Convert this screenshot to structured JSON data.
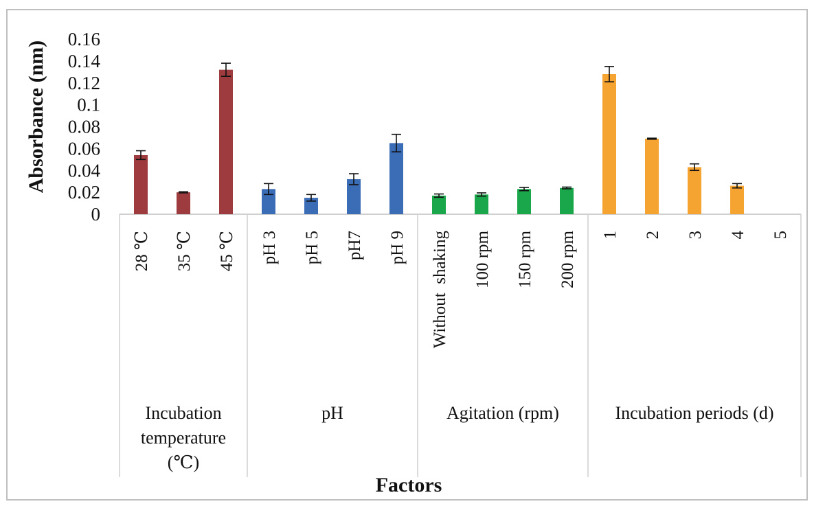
{
  "chart_data": {
    "type": "bar",
    "title": "",
    "xlabel": "Factors",
    "ylabel": "Absorbance (nm)",
    "ylim": [
      0,
      0.16
    ],
    "yticks": [
      "0",
      "0.02",
      "0.04",
      "0.06",
      "0.08",
      "0.1",
      "0.12",
      "0.14",
      "0.16"
    ],
    "grid": false,
    "legend": "none",
    "groups": [
      {
        "name": "Incubation temperature (℃)",
        "name_lines": [
          "Incubation",
          "temperature",
          "(℃)"
        ],
        "color": "#9e3b3f",
        "categories": [
          "28 ℃",
          "35 ℃",
          "45 ℃"
        ],
        "values": [
          0.054,
          0.02,
          0.132
        ],
        "errors": [
          0.004,
          0.0005,
          0.006
        ]
      },
      {
        "name": "pH",
        "name_lines": [
          "pH"
        ],
        "color": "#3a6db5",
        "categories": [
          "pH 3",
          "pH 5",
          "pH7",
          "pH 9"
        ],
        "values": [
          0.023,
          0.015,
          0.032,
          0.065
        ],
        "errors": [
          0.005,
          0.003,
          0.005,
          0.008
        ]
      },
      {
        "name": "Agitation (rpm)",
        "name_lines": [
          "Agitation (rpm)"
        ],
        "color": "#1aa64a",
        "categories": [
          "Without  shaking",
          "100 rpm",
          "150 rpm",
          "200 rpm"
        ],
        "values": [
          0.017,
          0.018,
          0.023,
          0.024
        ],
        "errors": [
          0.0015,
          0.0015,
          0.0015,
          0.0008
        ]
      },
      {
        "name": "Incubation periods (d)",
        "name_lines": [
          "Incubation periods (d)"
        ],
        "color": "#f5a431",
        "categories": [
          "1",
          "2",
          "3",
          "4",
          "5"
        ],
        "values": [
          0.128,
          0.069,
          0.043,
          0.026,
          0.0
        ],
        "errors": [
          0.007,
          0.0005,
          0.003,
          0.002,
          0.0
        ]
      }
    ]
  }
}
